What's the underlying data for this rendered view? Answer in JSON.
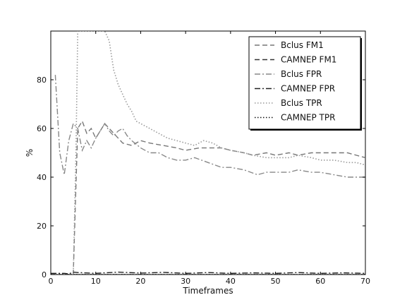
{
  "chart_data": {
    "type": "line",
    "xlabel": "Timeframes",
    "ylabel": "%",
    "xlim": [
      0,
      70
    ],
    "ylim": [
      0,
      100
    ],
    "xticks": [
      0,
      10,
      20,
      30,
      40,
      50,
      60,
      70
    ],
    "yticks": [
      0,
      20,
      40,
      60,
      80
    ],
    "grid": false,
    "legend_position": "top-right",
    "series": [
      {
        "name": "Bclus FM1",
        "style": "dashed",
        "color": "#777777",
        "points": [
          [
            5,
            0
          ],
          [
            5.5,
            30
          ],
          [
            6,
            60
          ],
          [
            7,
            63
          ],
          [
            8,
            58
          ],
          [
            9,
            60
          ],
          [
            10,
            56
          ],
          [
            11,
            59
          ],
          [
            12,
            62
          ],
          [
            13,
            60
          ],
          [
            14,
            58
          ],
          [
            15,
            56
          ],
          [
            16,
            54
          ],
          [
            18,
            53
          ],
          [
            20,
            55
          ],
          [
            22,
            54
          ],
          [
            25,
            53
          ],
          [
            28,
            52
          ],
          [
            30,
            51
          ],
          [
            33,
            52
          ],
          [
            36,
            52
          ],
          [
            38,
            52
          ],
          [
            40,
            51
          ],
          [
            43,
            50
          ],
          [
            45,
            49
          ],
          [
            48,
            50
          ],
          [
            50,
            49
          ],
          [
            53,
            50
          ],
          [
            55,
            49
          ],
          [
            58,
            50
          ],
          [
            60,
            50
          ],
          [
            63,
            50
          ],
          [
            66,
            50
          ],
          [
            68,
            49
          ],
          [
            70,
            48
          ]
        ]
      },
      {
        "name": "CAMNEP FM1",
        "style": "dashed",
        "color": "#333333",
        "points": [
          [
            0,
            0
          ],
          [
            10,
            0
          ],
          [
            20,
            0
          ],
          [
            30,
            0
          ],
          [
            40,
            0
          ],
          [
            50,
            0
          ],
          [
            60,
            0
          ],
          [
            70,
            0
          ]
        ]
      },
      {
        "name": "Bclus FPR",
        "style": "dash-dot",
        "color": "#888888",
        "points": [
          [
            1,
            82
          ],
          [
            2,
            50
          ],
          [
            3,
            41
          ],
          [
            4,
            55
          ],
          [
            5,
            62
          ],
          [
            6,
            60
          ],
          [
            7,
            51
          ],
          [
            8,
            55
          ],
          [
            9,
            52
          ],
          [
            10,
            56
          ],
          [
            11,
            59
          ],
          [
            12,
            62
          ],
          [
            13,
            59
          ],
          [
            14,
            57
          ],
          [
            15,
            59
          ],
          [
            16,
            60
          ],
          [
            17,
            57
          ],
          [
            18,
            55
          ],
          [
            20,
            52
          ],
          [
            22,
            50
          ],
          [
            24,
            50
          ],
          [
            26,
            48
          ],
          [
            28,
            47
          ],
          [
            30,
            47
          ],
          [
            32,
            48
          ],
          [
            35,
            46
          ],
          [
            38,
            44
          ],
          [
            40,
            44
          ],
          [
            43,
            43
          ],
          [
            46,
            41
          ],
          [
            48,
            42
          ],
          [
            50,
            42
          ],
          [
            53,
            42
          ],
          [
            55,
            43
          ],
          [
            58,
            42
          ],
          [
            60,
            42
          ],
          [
            63,
            41
          ],
          [
            66,
            40
          ],
          [
            68,
            40
          ],
          [
            70,
            40
          ]
        ]
      },
      {
        "name": "CAMNEP FPR",
        "style": "dash-dot",
        "color": "#222222",
        "points": [
          [
            0,
            0.5
          ],
          [
            3,
            0.5
          ],
          [
            4,
            0.3
          ],
          [
            5,
            1
          ],
          [
            6,
            0.8
          ],
          [
            10,
            0.5
          ],
          [
            15,
            1
          ],
          [
            20,
            0.6
          ],
          [
            25,
            0.9
          ],
          [
            30,
            0.5
          ],
          [
            35,
            0.8
          ],
          [
            40,
            0.5
          ],
          [
            45,
            0.7
          ],
          [
            50,
            0.5
          ],
          [
            55,
            0.8
          ],
          [
            60,
            0.5
          ],
          [
            65,
            0.7
          ],
          [
            70,
            0.5
          ]
        ]
      },
      {
        "name": "Bclus TPR",
        "style": "dotted",
        "color": "#999999",
        "points": [
          [
            5,
            0
          ],
          [
            5.6,
            50
          ],
          [
            6,
            100
          ],
          [
            8,
            100
          ],
          [
            10,
            100
          ],
          [
            12,
            100
          ],
          [
            13,
            96
          ],
          [
            14,
            84
          ],
          [
            15,
            78
          ],
          [
            16,
            74
          ],
          [
            17,
            70
          ],
          [
            18,
            67
          ],
          [
            19,
            63
          ],
          [
            20,
            62
          ],
          [
            22,
            60
          ],
          [
            24,
            58
          ],
          [
            26,
            56
          ],
          [
            28,
            55
          ],
          [
            30,
            54
          ],
          [
            32,
            53
          ],
          [
            34,
            55
          ],
          [
            36,
            54
          ],
          [
            38,
            52
          ],
          [
            40,
            51
          ],
          [
            43,
            50
          ],
          [
            45,
            49
          ],
          [
            48,
            48
          ],
          [
            50,
            48
          ],
          [
            53,
            48
          ],
          [
            55,
            49
          ],
          [
            58,
            48
          ],
          [
            60,
            47
          ],
          [
            63,
            47
          ],
          [
            66,
            46
          ],
          [
            68,
            46
          ],
          [
            70,
            45
          ]
        ]
      },
      {
        "name": "CAMNEP TPR",
        "style": "dotted",
        "color": "#111111",
        "points": [
          [
            0,
            0
          ],
          [
            10,
            0
          ],
          [
            20,
            0
          ],
          [
            30,
            0
          ],
          [
            40,
            0
          ],
          [
            50,
            0
          ],
          [
            60,
            0
          ],
          [
            70,
            0
          ]
        ]
      }
    ]
  }
}
